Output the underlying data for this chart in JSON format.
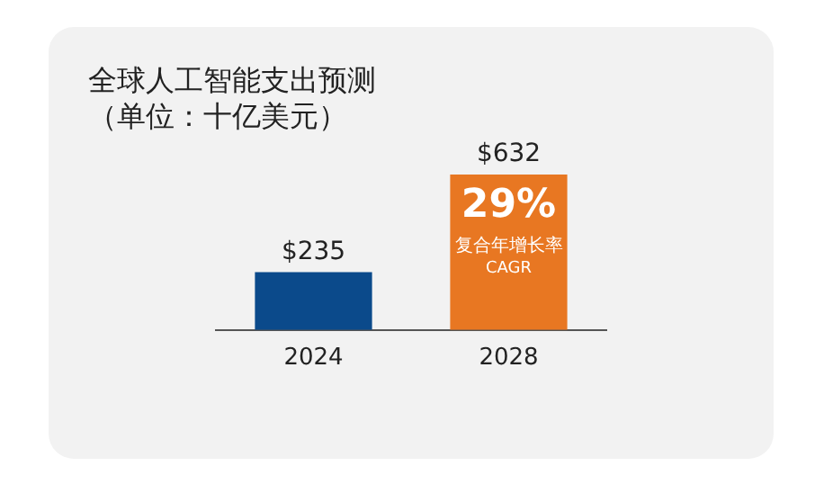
{
  "chart_data": {
    "type": "bar",
    "title": "全球人工智能支出预测",
    "subtitle": "（单位：十亿美元）",
    "categories": [
      "2024",
      "2028"
    ],
    "values": [
      235,
      632
    ],
    "colors": [
      "#0b4a8b",
      "#e87722"
    ],
    "value_labels": [
      "$235",
      "$632"
    ],
    "annotations": [
      "29%",
      "复合年增长率",
      "CAGR"
    ],
    "grid": false,
    "legend": false
  }
}
